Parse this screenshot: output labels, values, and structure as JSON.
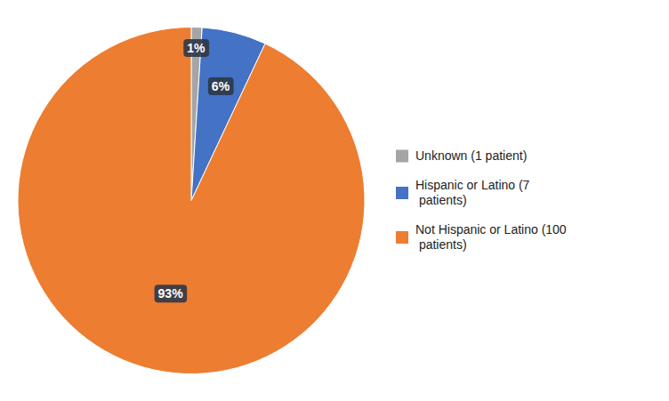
{
  "chart_data": {
    "type": "pie",
    "categories": [
      "Unknown (1 patient)",
      "Hispanic or Latino (7\n patients)",
      "Not Hispanic or Latino (100\n patients)"
    ],
    "values": [
      1,
      6,
      93
    ],
    "value_labels": [
      "1%",
      "6%",
      "93%"
    ],
    "colors": [
      "#A5A5A5",
      "#4472C4",
      "#ED7D31"
    ],
    "data_labels": true,
    "legend": "right"
  }
}
